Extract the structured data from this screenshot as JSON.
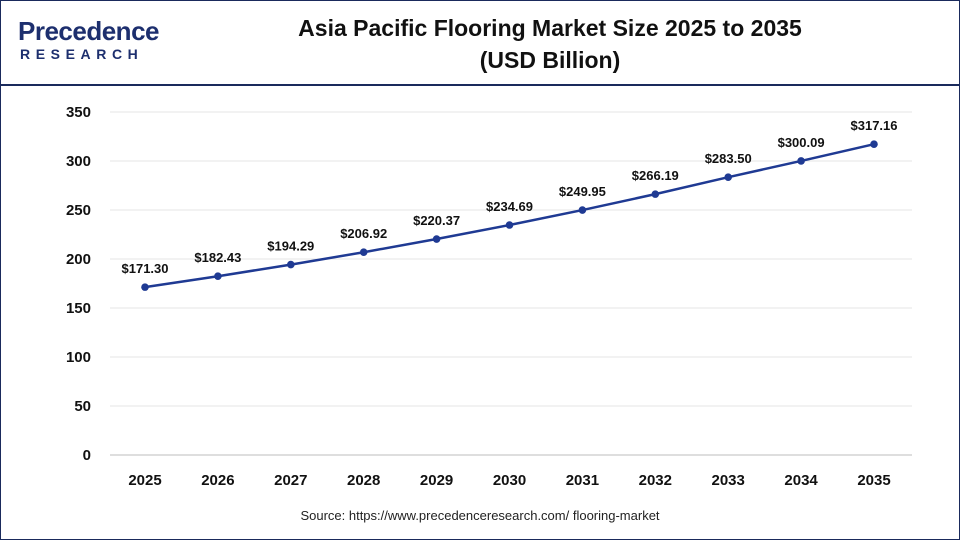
{
  "brand": {
    "name": "Precedence",
    "sub": "RESEARCH",
    "color": "#1d2f6e"
  },
  "title_line1": "Asia Pacific Flooring Market Size 2025 to 2035",
  "title_line2": "(USD Billion)",
  "source": "Source: https://www.precedenceresearch.com/ flooring-market",
  "chart_data": {
    "type": "line",
    "x": [
      "2025",
      "2026",
      "2027",
      "2028",
      "2029",
      "2030",
      "2031",
      "2032",
      "2033",
      "2034",
      "2035"
    ],
    "series": [
      {
        "values": [
          171.3,
          182.43,
          194.29,
          206.92,
          220.37,
          234.69,
          249.95,
          266.19,
          283.5,
          300.09,
          317.16
        ],
        "labels": [
          "$171.30",
          "$182.43",
          "$194.29",
          "$206.92",
          "$220.37",
          "$234.69",
          "$249.95",
          "$266.19",
          "$283.50",
          "$300.09",
          "$317.16"
        ],
        "color": "#1f3a93"
      }
    ],
    "yticks": [
      0,
      50,
      100,
      150,
      200,
      250,
      300,
      350
    ],
    "ylim": [
      0,
      350
    ],
    "grid": true,
    "legend": "none"
  }
}
